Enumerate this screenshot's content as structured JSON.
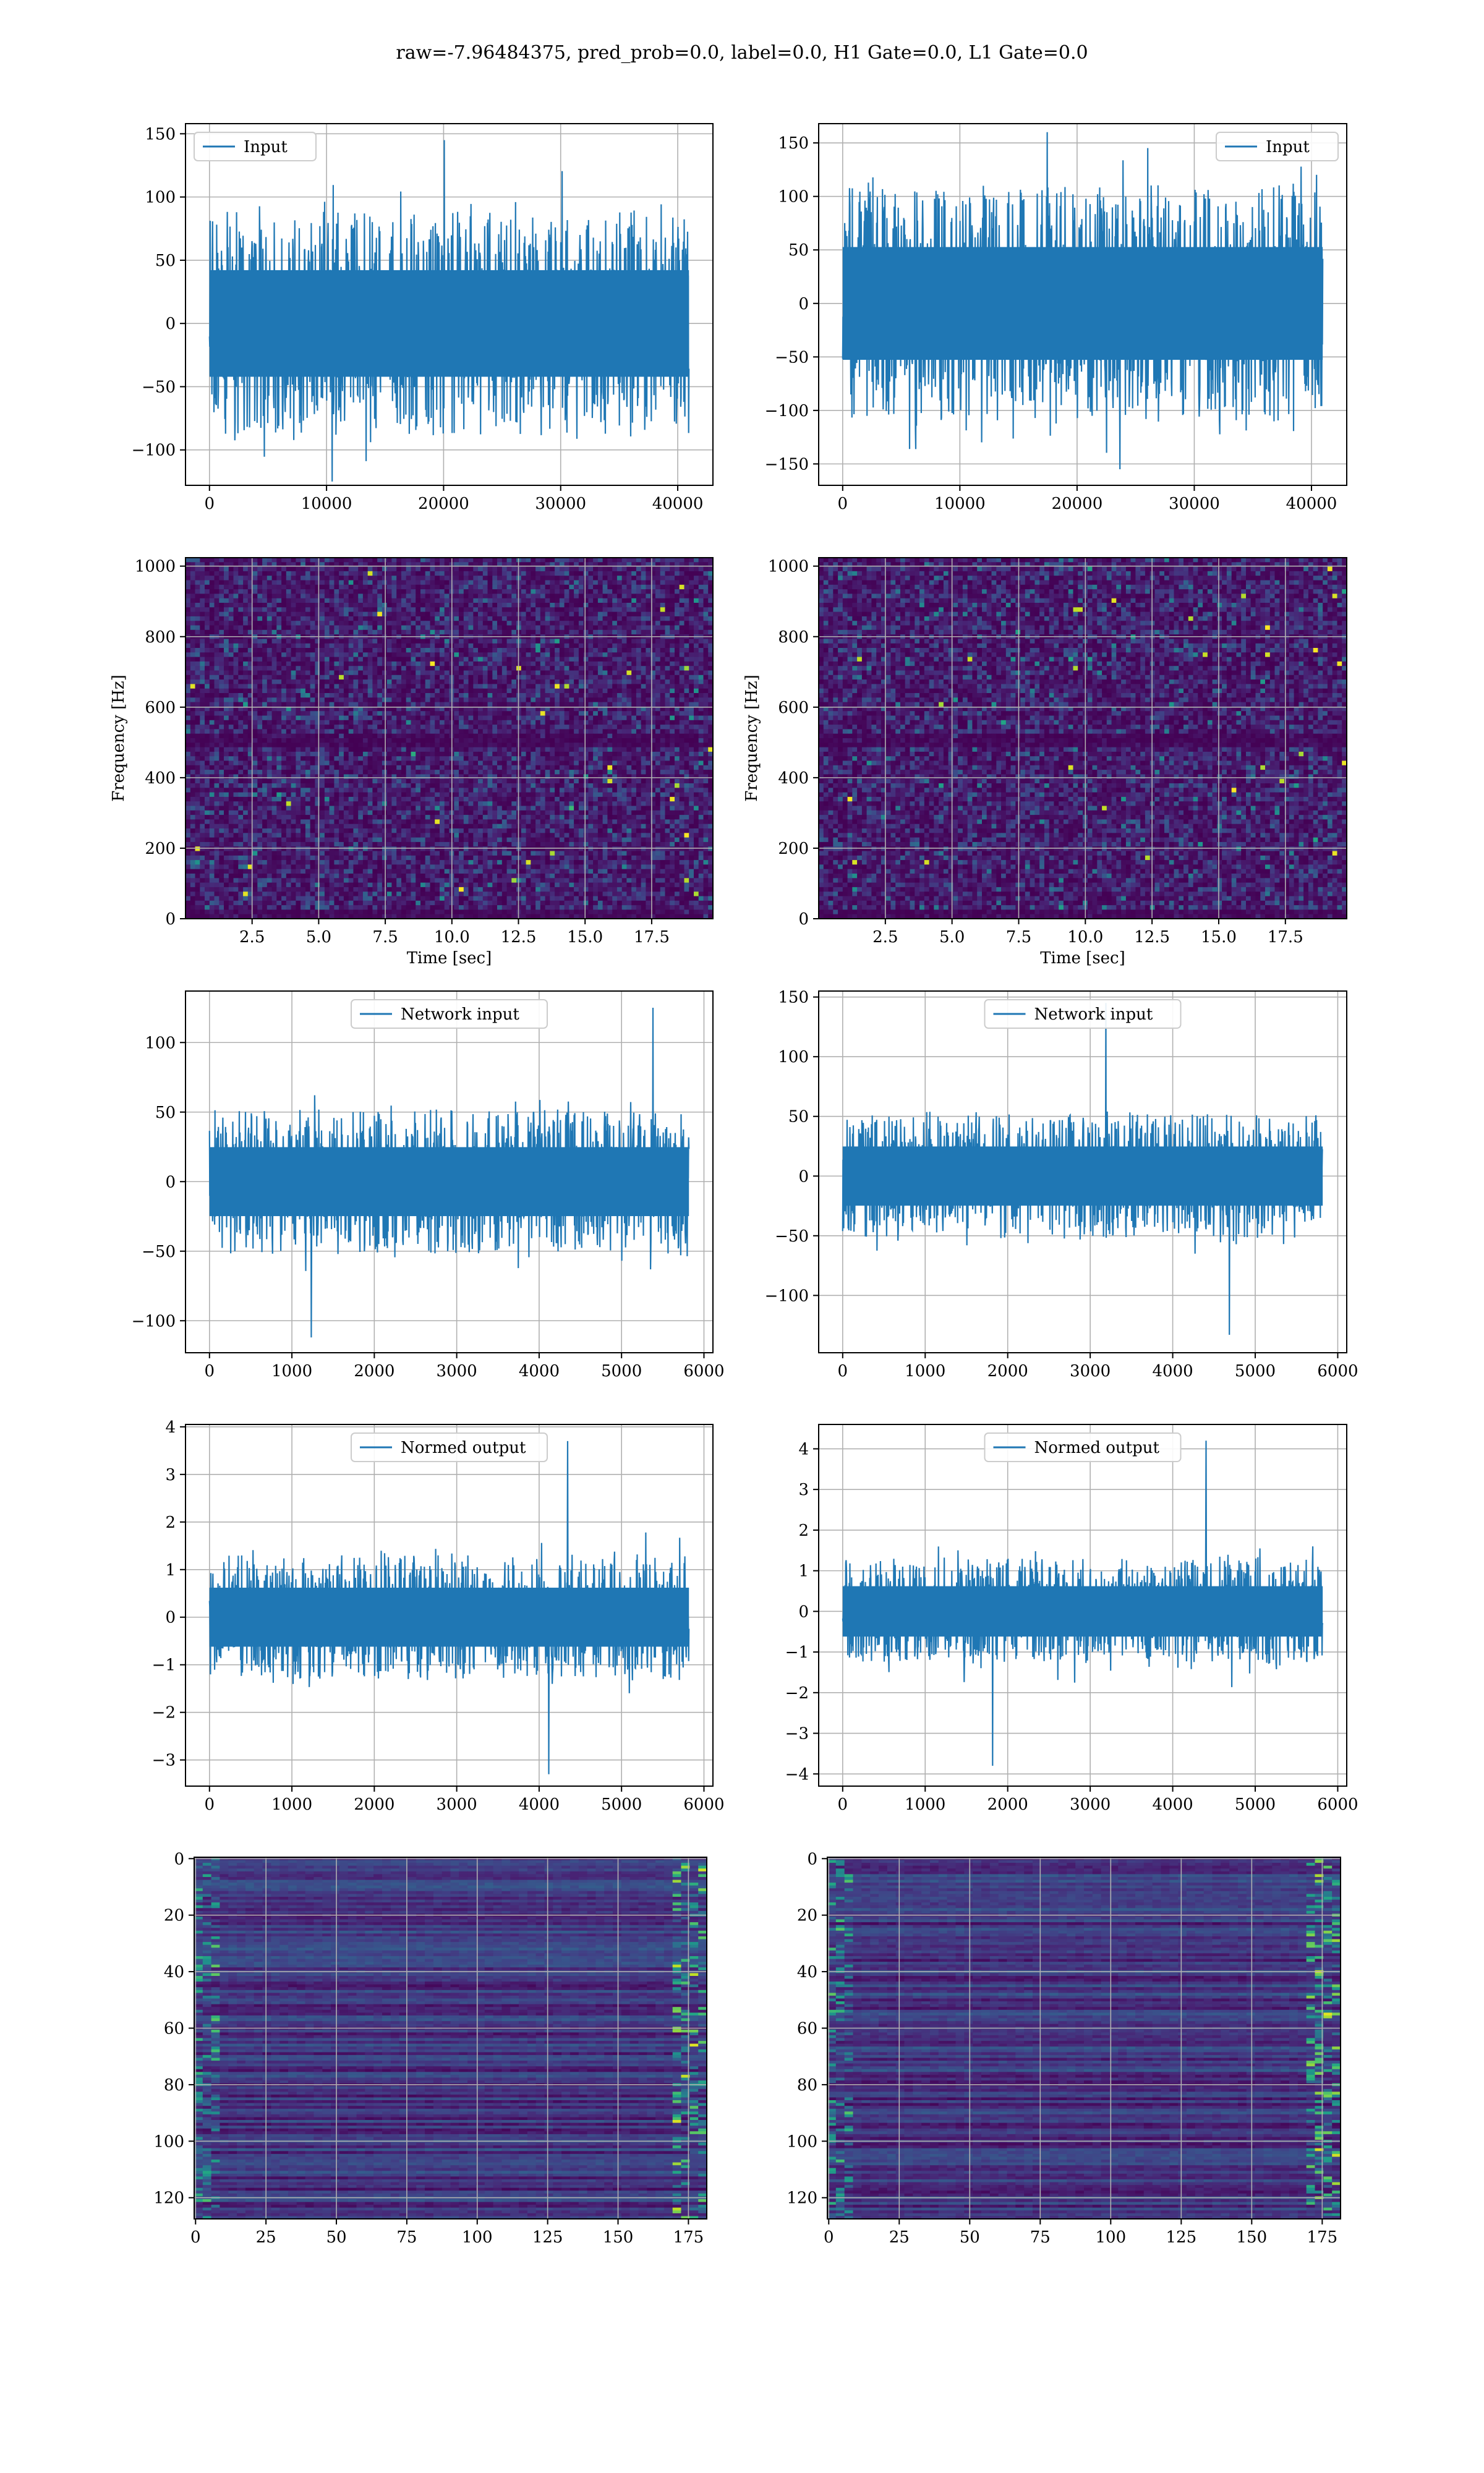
{
  "figure": {
    "suptitle": "raw=-7.96484375, pred_prob=0.0, label=0.0, H1 Gate=0.0, L1 Gate=0.0",
    "colors": {
      "line": "#1f77b4",
      "grid": "#b0b0b0",
      "heatmap_low": "#440154",
      "heatmap_high": "#fde725"
    }
  },
  "chart_data": [
    {
      "id": "h1-input",
      "type": "line",
      "title": "",
      "xlabel": "",
      "ylabel": "",
      "xlim": [
        -2048,
        43008
      ],
      "ylim": [
        -128,
        158
      ],
      "xticks": [
        0,
        10000,
        20000,
        30000,
        40000
      ],
      "xtick_labels": [
        "0",
        "10000",
        "20000",
        "30000",
        "40000"
      ],
      "yticks": [
        -100,
        -50,
        0,
        50,
        100,
        150
      ],
      "ytick_labels": [
        "−100",
        "−50",
        "0",
        "50",
        "100",
        "150"
      ],
      "legend": {
        "location": "upper left",
        "entries": [
          "Input"
        ]
      },
      "series": [
        {
          "name": "Input",
          "x_range": [
            0,
            40960
          ],
          "amp": 68,
          "extreme": 145,
          "peak_min": -125,
          "seed": 11,
          "n": 1400
        }
      ],
      "grid": true
    },
    {
      "id": "l1-input",
      "type": "line",
      "title": "",
      "xlabel": "",
      "ylabel": "",
      "xlim": [
        -2048,
        43008
      ],
      "ylim": [
        -170,
        168
      ],
      "xticks": [
        0,
        10000,
        20000,
        30000,
        40000
      ],
      "xtick_labels": [
        "0",
        "10000",
        "20000",
        "30000",
        "40000"
      ],
      "yticks": [
        -150,
        -100,
        -50,
        0,
        50,
        100,
        150
      ],
      "ytick_labels": [
        "−150",
        "−100",
        "−50",
        "0",
        "50",
        "100",
        "150"
      ],
      "legend": {
        "location": "upper right",
        "entries": [
          "Input"
        ]
      },
      "series": [
        {
          "name": "Input",
          "x_range": [
            0,
            40960
          ],
          "amp": 85,
          "extreme": 160,
          "peak_min": -155,
          "seed": 23,
          "n": 1400
        }
      ],
      "grid": true
    },
    {
      "id": "h1-spectrogram",
      "type": "heatmap",
      "title": "",
      "xlabel": "Time [sec]",
      "ylabel": "Frequency [Hz]",
      "xlim": [
        0,
        19.8
      ],
      "ylim": [
        0,
        1024
      ],
      "xticks": [
        2.5,
        5.0,
        7.5,
        10.0,
        12.5,
        15.0,
        17.5
      ],
      "xtick_labels": [
        "2.5",
        "5.0",
        "7.5",
        "10.0",
        "12.5",
        "15.0",
        "17.5"
      ],
      "yticks": [
        0,
        200,
        400,
        600,
        800,
        1000
      ],
      "ytick_labels": [
        "0",
        "200",
        "400",
        "600",
        "800",
        "1000"
      ],
      "colormap": "viridis",
      "dark_band_hz": [
        480,
        520
      ],
      "seed": 31,
      "grid": true
    },
    {
      "id": "l1-spectrogram",
      "type": "heatmap",
      "title": "",
      "xlabel": "Time [sec]",
      "ylabel": "Frequency [Hz]",
      "xlim": [
        0,
        19.8
      ],
      "ylim": [
        0,
        1024
      ],
      "xticks": [
        2.5,
        5.0,
        7.5,
        10.0,
        12.5,
        15.0,
        17.5
      ],
      "xtick_labels": [
        "2.5",
        "5.0",
        "7.5",
        "10.0",
        "12.5",
        "15.0",
        "17.5"
      ],
      "yticks": [
        0,
        200,
        400,
        600,
        800,
        1000
      ],
      "ytick_labels": [
        "0",
        "200",
        "400",
        "600",
        "800",
        "1000"
      ],
      "colormap": "viridis",
      "dark_band_hz": [
        480,
        520
      ],
      "seed": 37,
      "grid": true
    },
    {
      "id": "h1-network-input",
      "type": "line",
      "title": "",
      "xlabel": "",
      "ylabel": "",
      "xlim": [
        -291,
        6109
      ],
      "ylim": [
        -123,
        137
      ],
      "xticks": [
        0,
        1000,
        2000,
        3000,
        4000,
        5000,
        6000
      ],
      "xtick_labels": [
        "0",
        "1000",
        "2000",
        "3000",
        "4000",
        "5000",
        "6000"
      ],
      "yticks": [
        -100,
        -50,
        0,
        50,
        100
      ],
      "ytick_labels": [
        "−100",
        "−50",
        "0",
        "50",
        "100"
      ],
      "legend": {
        "location": "upper center",
        "entries": [
          "Network input"
        ]
      },
      "series": [
        {
          "name": "Network input",
          "x_range": [
            0,
            5818
          ],
          "amp": 40,
          "extreme": 125,
          "peak_min": -112,
          "seed": 41,
          "n": 1400
        }
      ],
      "grid": true
    },
    {
      "id": "l1-network-input",
      "type": "line",
      "title": "",
      "xlabel": "",
      "ylabel": "",
      "xlim": [
        -291,
        6109
      ],
      "ylim": [
        -148,
        155
      ],
      "xticks": [
        0,
        1000,
        2000,
        3000,
        4000,
        5000,
        6000
      ],
      "xtick_labels": [
        "0",
        "1000",
        "2000",
        "3000",
        "4000",
        "5000",
        "6000"
      ],
      "yticks": [
        -100,
        -50,
        0,
        50,
        100,
        150
      ],
      "ytick_labels": [
        "−100",
        "−50",
        "0",
        "50",
        "100",
        "150"
      ],
      "legend": {
        "location": "upper center",
        "entries": [
          "Network input"
        ]
      },
      "series": [
        {
          "name": "Network input",
          "x_range": [
            0,
            5818
          ],
          "amp": 40,
          "extreme": 145,
          "peak_min": -133,
          "seed": 53,
          "n": 1400
        }
      ],
      "grid": true
    },
    {
      "id": "h1-normed-output",
      "type": "line",
      "title": "",
      "xlabel": "",
      "ylabel": "",
      "xlim": [
        -291,
        6109
      ],
      "ylim": [
        -3.55,
        4.05
      ],
      "xticks": [
        0,
        1000,
        2000,
        3000,
        4000,
        5000,
        6000
      ],
      "xtick_labels": [
        "0",
        "1000",
        "2000",
        "3000",
        "4000",
        "5000",
        "6000"
      ],
      "yticks": [
        -3,
        -2,
        -1,
        0,
        1,
        2,
        3,
        4
      ],
      "ytick_labels": [
        "−3",
        "−2",
        "−1",
        "0",
        "1",
        "2",
        "3",
        "4"
      ],
      "legend": {
        "location": "upper center",
        "entries": [
          "Normed output"
        ]
      },
      "series": [
        {
          "name": "Normed output",
          "x_range": [
            0,
            5818
          ],
          "amp": 1.0,
          "extreme": 3.7,
          "peak_min": -3.3,
          "seed": 61,
          "n": 1400
        }
      ],
      "grid": true
    },
    {
      "id": "l1-normed-output",
      "type": "line",
      "title": "",
      "xlabel": "",
      "ylabel": "",
      "xlim": [
        -291,
        6109
      ],
      "ylim": [
        -4.3,
        4.6
      ],
      "xticks": [
        0,
        1000,
        2000,
        3000,
        4000,
        5000,
        6000
      ],
      "xtick_labels": [
        "0",
        "1000",
        "2000",
        "3000",
        "4000",
        "5000",
        "6000"
      ],
      "yticks": [
        -4,
        -3,
        -2,
        -1,
        0,
        1,
        2,
        3,
        4
      ],
      "ytick_labels": [
        "−4",
        "−3",
        "−2",
        "−1",
        "0",
        "1",
        "2",
        "3",
        "4"
      ],
      "legend": {
        "location": "upper center",
        "entries": [
          "Normed output"
        ]
      },
      "series": [
        {
          "name": "Normed output",
          "x_range": [
            0,
            5818
          ],
          "amp": 1.0,
          "extreme": 4.2,
          "peak_min": -3.8,
          "seed": 71,
          "n": 1400
        }
      ],
      "grid": true
    },
    {
      "id": "h1-feature-map",
      "type": "heatmap",
      "title": "",
      "xlabel": "",
      "ylabel": "",
      "xlim": [
        -0.5,
        181.5
      ],
      "ylim": [
        127.5,
        -0.5
      ],
      "xticks": [
        0,
        25,
        50,
        75,
        100,
        125,
        150,
        175
      ],
      "xtick_labels": [
        "0",
        "25",
        "50",
        "75",
        "100",
        "125",
        "150",
        "175"
      ],
      "yticks": [
        0,
        20,
        40,
        60,
        80,
        100,
        120
      ],
      "ytick_labels": [
        "0",
        "20",
        "40",
        "60",
        "80",
        "100",
        "120"
      ],
      "colormap": "viridis",
      "rows": 128,
      "cols": 182,
      "seed": 83,
      "grid": true
    },
    {
      "id": "l1-feature-map",
      "type": "heatmap",
      "title": "",
      "xlabel": "",
      "ylabel": "",
      "xlim": [
        -0.5,
        181.5
      ],
      "ylim": [
        127.5,
        -0.5
      ],
      "xticks": [
        0,
        25,
        50,
        75,
        100,
        125,
        150,
        175
      ],
      "xtick_labels": [
        "0",
        "25",
        "50",
        "75",
        "100",
        "125",
        "150",
        "175"
      ],
      "yticks": [
        0,
        20,
        40,
        60,
        80,
        100,
        120
      ],
      "ytick_labels": [
        "0",
        "20",
        "40",
        "60",
        "80",
        "100",
        "120"
      ],
      "colormap": "viridis",
      "rows": 128,
      "cols": 182,
      "seed": 97,
      "grid": true
    }
  ]
}
